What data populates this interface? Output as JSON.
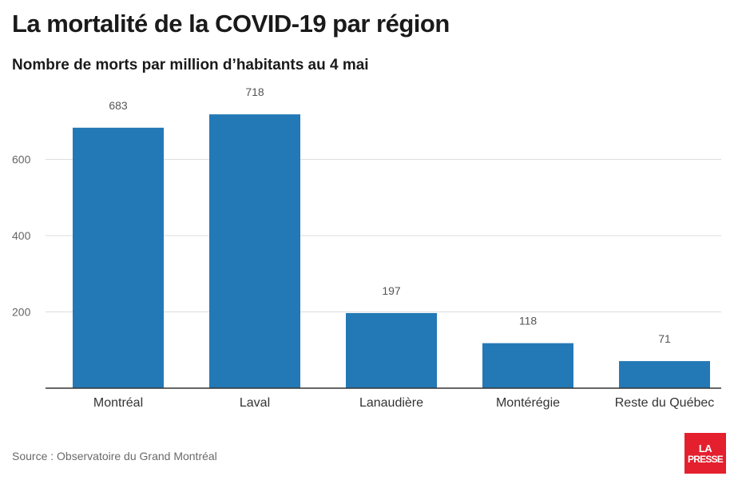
{
  "title": "La mortalité de la COVID-19 par région",
  "subtitle": "Nombre de morts par million d’habitants au 4 mai",
  "source": "Source : Observatoire du Grand Montréal",
  "logo": {
    "line1": "LA",
    "line2": "PRESSE"
  },
  "colors": {
    "bar": "#2379b6",
    "grid": "#dddddd",
    "axis": "#333333",
    "label": "#555555",
    "tick": "#666666"
  },
  "chart_data": {
    "type": "bar",
    "categories": [
      "Montréal",
      "Laval",
      "Lanaudière",
      "Montérégie",
      "Reste du Québec"
    ],
    "values": [
      683,
      718,
      197,
      118,
      71
    ],
    "data_labels": [
      "683",
      "718",
      "197",
      "118",
      "71"
    ],
    "yticks": [
      200,
      400,
      600
    ],
    "ylim": [
      0,
      740
    ],
    "grid": true,
    "legend": "none",
    "xlabel": "",
    "ylabel": ""
  }
}
